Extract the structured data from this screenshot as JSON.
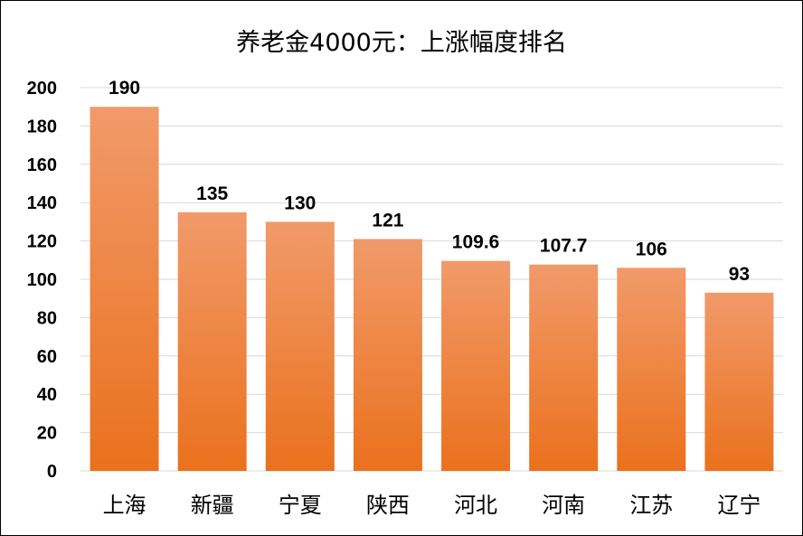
{
  "chart_data": {
    "type": "bar",
    "title": "养老金4000元：上涨幅度排名",
    "categories": [
      "上海",
      "新疆",
      "宁夏",
      "陕西",
      "河北",
      "河南",
      "江苏",
      "辽宁"
    ],
    "values": [
      190,
      135,
      130,
      121,
      109.6,
      107.7,
      106,
      93
    ],
    "data_labels": [
      "190",
      "135",
      "130",
      "121",
      "109.6",
      "107.7",
      "106",
      "93"
    ],
    "ylim": [
      0,
      200
    ],
    "yticks": [
      0,
      20,
      40,
      60,
      80,
      100,
      120,
      140,
      160,
      180,
      200
    ],
    "grid": true,
    "legend": "none",
    "colors": {
      "bar_top": "#F19A6A",
      "bar_bottom": "#EA711D",
      "grid": "#D9D9D9"
    }
  }
}
